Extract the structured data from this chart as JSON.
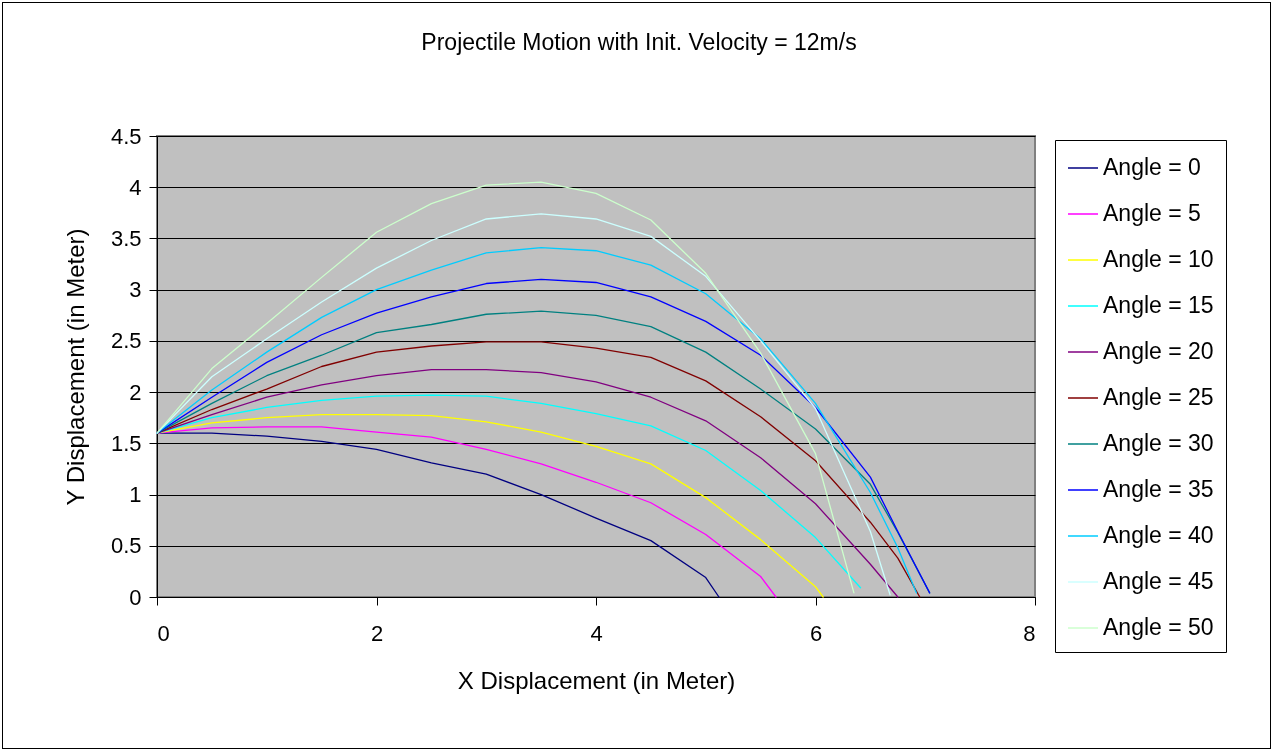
{
  "chart_data": {
    "type": "line",
    "title": "Projectile Motion with Init. Velocity = 12m/s",
    "xlabel": "X Displacement (in Meter)",
    "ylabel": "Y Displacement (in Meter)",
    "xlim": [
      0,
      8
    ],
    "xticks": [
      0,
      2,
      4,
      6,
      8
    ],
    "ylim": [
      0,
      4.5
    ],
    "yticks": [
      0,
      0.5,
      1,
      1.5,
      2,
      2.5,
      3,
      3.5,
      4,
      4.5
    ],
    "grid": "y",
    "legend": "right",
    "series": [
      {
        "name": "Angle = 0",
        "color": "#000080",
        "x": [
          0,
          0.5,
          1,
          1.5,
          2,
          2.5,
          3,
          3.5,
          4,
          4.5,
          5,
          5.12
        ],
        "values": [
          1.6,
          1.6,
          1.57,
          1.52,
          1.44,
          1.31,
          1.2,
          1.0,
          0.77,
          0.55,
          0.19,
          0
        ]
      },
      {
        "name": "Angle = 5",
        "color": "#ff00ff",
        "x": [
          0,
          0.5,
          1,
          1.5,
          2,
          2.5,
          3,
          3.5,
          4,
          4.5,
          5,
          5.5,
          5.64
        ],
        "values": [
          1.6,
          1.65,
          1.66,
          1.66,
          1.61,
          1.56,
          1.44,
          1.3,
          1.12,
          0.92,
          0.61,
          0.2,
          0
        ]
      },
      {
        "name": "Angle = 10",
        "color": "#ffff00",
        "x": [
          0,
          0.5,
          1,
          1.5,
          2,
          2.5,
          3,
          3.5,
          4,
          4.5,
          5,
          5.5,
          6,
          6.07
        ],
        "values": [
          1.6,
          1.7,
          1.75,
          1.78,
          1.78,
          1.77,
          1.71,
          1.61,
          1.47,
          1.3,
          0.97,
          0.56,
          0.1,
          0
        ]
      },
      {
        "name": "Angle = 15",
        "color": "#00ffff",
        "x": [
          0,
          0.5,
          1,
          1.5,
          2,
          2.5,
          3,
          3.5,
          4,
          4.5,
          5,
          5.5,
          6,
          6.41
        ],
        "values": [
          1.6,
          1.75,
          1.85,
          1.92,
          1.96,
          1.97,
          1.96,
          1.89,
          1.79,
          1.67,
          1.43,
          1.04,
          0.58,
          0.09
        ]
      },
      {
        "name": "Angle = 20",
        "color": "#800080",
        "x": [
          0,
          0.5,
          1,
          1.5,
          2,
          2.5,
          3,
          3.5,
          4,
          4.5,
          5,
          5.5,
          6,
          6.5,
          6.75
        ],
        "values": [
          1.6,
          1.78,
          1.95,
          2.07,
          2.16,
          2.22,
          2.22,
          2.19,
          2.1,
          1.95,
          1.72,
          1.36,
          0.91,
          0.32,
          0
        ]
      },
      {
        "name": "Angle = 25",
        "color": "#800000",
        "x": [
          0,
          0.5,
          1,
          1.5,
          2,
          2.5,
          3,
          3.5,
          4,
          4.5,
          5,
          5.5,
          6,
          6.5,
          6.75,
          6.95
        ],
        "values": [
          1.6,
          1.83,
          2.03,
          2.25,
          2.39,
          2.45,
          2.49,
          2.49,
          2.43,
          2.34,
          2.11,
          1.76,
          1.33,
          0.73,
          0.38,
          0
        ]
      },
      {
        "name": "Angle = 30",
        "color": "#008080",
        "x": [
          0,
          0.5,
          1,
          1.5,
          2,
          2.5,
          3,
          3.5,
          4,
          4.5,
          5,
          5.5,
          6,
          6.5,
          6.75,
          7.04
        ],
        "values": [
          1.6,
          1.89,
          2.16,
          2.36,
          2.58,
          2.66,
          2.76,
          2.79,
          2.75,
          2.64,
          2.39,
          2.03,
          1.64,
          1.1,
          0.63,
          0.04
        ]
      },
      {
        "name": "Angle = 35",
        "color": "#0000ff",
        "x": [
          0,
          0.5,
          1,
          1.5,
          2,
          2.5,
          3,
          3.5,
          4,
          4.5,
          5,
          5.5,
          6,
          6.5,
          6.75,
          7.04
        ],
        "values": [
          1.6,
          1.95,
          2.29,
          2.56,
          2.77,
          2.93,
          3.06,
          3.1,
          3.07,
          2.93,
          2.69,
          2.36,
          1.85,
          1.17,
          0.64,
          0.04
        ]
      },
      {
        "name": "Angle = 40",
        "color": "#00ccff",
        "x": [
          0,
          0.5,
          1,
          1.5,
          2,
          2.5,
          3,
          3.5,
          4,
          4.5,
          5,
          5.5,
          6,
          6.5,
          6.75,
          6.92
        ],
        "values": [
          1.6,
          2.02,
          2.39,
          2.73,
          3.0,
          3.19,
          3.36,
          3.41,
          3.38,
          3.24,
          2.96,
          2.52,
          1.89,
          1.02,
          0.48,
          0.04
        ]
      },
      {
        "name": "Angle = 45",
        "color": "#ccffff",
        "x": [
          0,
          0.5,
          1,
          1.5,
          2,
          2.5,
          3,
          3.5,
          4,
          4.5,
          5,
          5.5,
          6,
          6.5,
          6.68
        ],
        "values": [
          1.6,
          2.15,
          2.52,
          2.88,
          3.21,
          3.48,
          3.69,
          3.74,
          3.69,
          3.52,
          3.13,
          2.5,
          1.84,
          0.64,
          0.02
        ]
      },
      {
        "name": "Angle = 50",
        "color": "#ccffcc",
        "x": [
          0,
          0.5,
          1,
          1.5,
          2,
          2.5,
          3,
          3.5,
          4,
          4.5,
          5,
          5.5,
          6,
          6.35
        ],
        "values": [
          1.6,
          2.23,
          2.67,
          3.12,
          3.56,
          3.84,
          4.02,
          4.05,
          3.94,
          3.68,
          3.16,
          2.38,
          1.4,
          0.04
        ]
      }
    ]
  }
}
